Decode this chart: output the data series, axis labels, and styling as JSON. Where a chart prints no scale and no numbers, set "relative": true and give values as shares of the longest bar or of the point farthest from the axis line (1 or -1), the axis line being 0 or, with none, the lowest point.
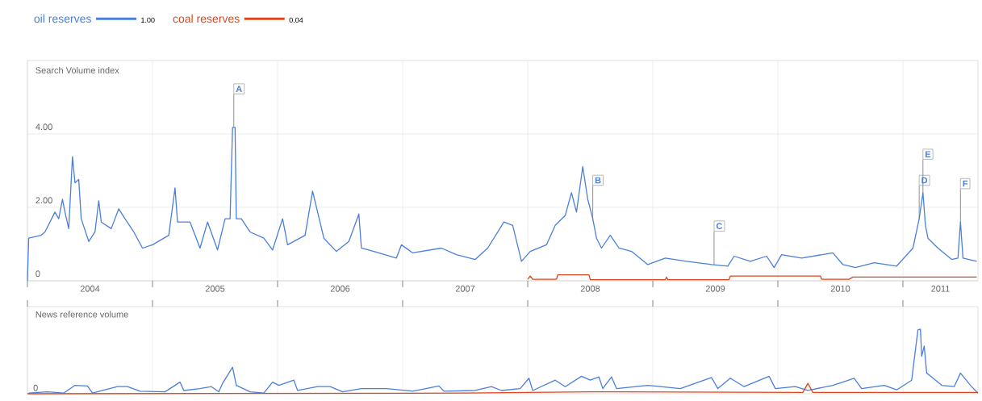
{
  "chart_data": [
    {
      "type": "line",
      "ylabel": "Search Volume index",
      "x": [
        2004.0,
        2004.01,
        2004.11,
        2004.14,
        2004.22,
        2004.25,
        2004.28,
        2004.3,
        2004.33,
        2004.36,
        2004.38,
        2004.41,
        2004.43,
        2004.49,
        2004.54,
        2004.57,
        2004.59,
        2004.67,
        2004.73,
        2004.78,
        2004.85,
        2004.92,
        2005.0,
        2005.13,
        2005.18,
        2005.2,
        2005.3,
        2005.38,
        2005.44,
        2005.52,
        2005.58,
        2005.62,
        2005.64,
        2005.66,
        2005.67,
        2005.71,
        2005.78,
        2005.89,
        2005.96,
        2006.04,
        2006.08,
        2006.22,
        2006.28,
        2006.37,
        2006.47,
        2006.57,
        2006.65,
        2006.67,
        2006.77,
        2006.95,
        2006.99,
        2007.08,
        2007.31,
        2007.43,
        2007.58,
        2007.68,
        2007.81,
        2007.88,
        2007.95,
        2008.02,
        2008.15,
        2008.22,
        2008.3,
        2008.35,
        2008.39,
        2008.44,
        2008.48,
        2008.52,
        2008.55,
        2008.59,
        2008.66,
        2008.73,
        2008.83,
        2008.96,
        2009.1,
        2009.27,
        2009.47,
        2009.6,
        2009.65,
        2009.78,
        2009.91,
        2009.97,
        2010.03,
        2010.19,
        2010.44,
        2010.52,
        2010.62,
        2010.77,
        2010.95,
        2011.08,
        2011.13,
        2011.16,
        2011.18,
        2011.2,
        2011.28,
        2011.39,
        2011.44,
        2011.46,
        2011.48,
        2011.59
      ],
      "series": [
        {
          "name": "oil reserves",
          "color": "#4a7fdc",
          "values": [
            0,
            1.16,
            1.24,
            1.33,
            1.87,
            1.69,
            2.22,
            1.87,
            1.42,
            3.38,
            2.67,
            2.76,
            1.69,
            1.07,
            1.33,
            2.18,
            1.6,
            1.42,
            1.96,
            1.69,
            1.33,
            0.89,
            0.98,
            1.24,
            2.53,
            1.6,
            1.6,
            0.89,
            1.6,
            0.84,
            1.69,
            1.69,
            4.18,
            4.18,
            1.69,
            1.69,
            1.33,
            1.16,
            0.84,
            1.69,
            0.98,
            1.24,
            2.44,
            1.16,
            0.8,
            1.07,
            1.82,
            0.89,
            0.8,
            0.62,
            0.98,
            0.76,
            0.89,
            0.71,
            0.58,
            0.89,
            1.6,
            1.51,
            0.53,
            0.8,
            0.98,
            1.51,
            1.78,
            2.4,
            1.87,
            3.11,
            2.22,
            1.69,
            1.16,
            0.89,
            1.24,
            0.89,
            0.8,
            0.44,
            0.62,
            0.53,
            0.44,
            0.4,
            0.67,
            0.53,
            0.67,
            0.36,
            0.71,
            0.62,
            0.76,
            0.44,
            0.36,
            0.49,
            0.4,
            0.89,
            1.69,
            2.4,
            1.51,
            1.16,
            0.89,
            0.58,
            0.62,
            1.6,
            0.62,
            0.53
          ]
        },
        {
          "name": "coal reserves",
          "color": "#d9481e",
          "x": [
            2008.0,
            2008.02,
            2008.04,
            2008.23,
            2008.24,
            2008.49,
            2008.5,
            2009.1,
            2009.11,
            2009.12,
            2009.61,
            2009.62,
            2010.34,
            2010.35,
            2010.57,
            2010.6,
            2011.59
          ],
          "values": [
            0.04,
            0.13,
            0.04,
            0.04,
            0.16,
            0.16,
            0.03,
            0.03,
            0.1,
            0.03,
            0.03,
            0.13,
            0.13,
            0.04,
            0.04,
            0.1,
            0.1
          ]
        }
      ],
      "xlim": [
        2004,
        2011.6
      ],
      "xticks": [
        {
          "value": 2004,
          "label": null
        },
        {
          "value": 2004.5,
          "label": "2004"
        },
        {
          "value": 2005,
          "label": null
        },
        {
          "value": 2005.5,
          "label": "2005"
        },
        {
          "value": 2006,
          "label": null
        },
        {
          "value": 2006.5,
          "label": "2006"
        },
        {
          "value": 2007,
          "label": null
        },
        {
          "value": 2007.5,
          "label": "2007"
        },
        {
          "value": 2008,
          "label": null
        },
        {
          "value": 2008.5,
          "label": "2008"
        },
        {
          "value": 2009,
          "label": null
        },
        {
          "value": 2009.5,
          "label": "2009"
        },
        {
          "value": 2010,
          "label": null
        },
        {
          "value": 2010.5,
          "label": "2010"
        },
        {
          "value": 2011,
          "label": null
        },
        {
          "value": 2011.3,
          "label": "2011"
        }
      ],
      "ylim": [
        0,
        6
      ],
      "yticks": [
        0,
        {
          "value": 2,
          "label": "2.00"
        },
        {
          "value": 4,
          "label": "4.00"
        }
      ],
      "grid": true,
      "legend": "top left",
      "annotations": [
        {
          "text": "A",
          "x": 2005.65,
          "y": 4.18
        },
        {
          "text": "B",
          "x": 2008.52,
          "y": 1.69
        },
        {
          "text": "C",
          "x": 2009.49,
          "y": 0.44
        },
        {
          "text": "D",
          "x": 2011.13,
          "y": 1.69
        },
        {
          "text": "E",
          "x": 2011.16,
          "y": 2.4
        },
        {
          "text": "F",
          "x": 2011.46,
          "y": 1.6
        },
        "1.00",
        "0.04"
      ]
    },
    {
      "type": "line",
      "ylabel": "News reference volume",
      "relative": true,
      "x": [
        2004.01,
        2004.16,
        2004.29,
        2004.38,
        2004.48,
        2004.52,
        2004.72,
        2004.8,
        2004.9,
        2005.1,
        2005.22,
        2005.25,
        2005.38,
        2005.47,
        2005.53,
        2005.56,
        2005.64,
        2005.67,
        2005.78,
        2005.89,
        2005.96,
        2006.01,
        2006.13,
        2006.16,
        2006.32,
        2006.42,
        2006.52,
        2006.67,
        2006.87,
        2007.08,
        2007.29,
        2007.33,
        2007.58,
        2007.71,
        2007.79,
        2007.94,
        2008.01,
        2008.04,
        2008.22,
        2008.3,
        2008.43,
        2008.5,
        2008.57,
        2008.6,
        2008.67,
        2008.71,
        2008.96,
        2009.06,
        2009.22,
        2009.47,
        2009.52,
        2009.62,
        2009.73,
        2009.93,
        2009.98,
        2010.14,
        2010.24,
        2010.44,
        2010.61,
        2010.67,
        2010.85,
        2010.95,
        2011.07,
        2011.12,
        2011.14,
        2011.15,
        2011.17,
        2011.19,
        2011.23,
        2011.31,
        2011.41,
        2011.46,
        2011.54,
        2011.6
      ],
      "series": [
        {
          "color": "#4a7fdc",
          "values": [
            0.01,
            0.03,
            0.01,
            0.13,
            0.12,
            0.01,
            0.11,
            0.11,
            0.04,
            0.03,
            0.18,
            0.05,
            0.08,
            0.11,
            0.03,
            0.16,
            0.41,
            0.13,
            0.03,
            0.01,
            0.18,
            0.13,
            0.21,
            0.05,
            0.11,
            0.11,
            0.03,
            0.08,
            0.08,
            0.04,
            0.12,
            0.04,
            0.05,
            0.11,
            0.05,
            0.08,
            0.24,
            0.05,
            0.21,
            0.11,
            0.27,
            0.21,
            0.26,
            0.08,
            0.26,
            0.08,
            0.13,
            0.11,
            0.08,
            0.25,
            0.08,
            0.24,
            0.11,
            0.27,
            0.08,
            0.11,
            0.05,
            0.13,
            0.24,
            0.08,
            0.13,
            0.06,
            0.21,
            0.99,
            1,
            0.58,
            0.74,
            0.32,
            0.26,
            0.13,
            0.11,
            0.32,
            0.13,
            0.01
          ]
        },
        {
          "color": "#d9481e",
          "x": [
            2004.0,
            2007.5,
            2008.5,
            2010.2,
            2010.24,
            2010.28,
            2011.6
          ],
          "values": [
            0,
            0.01,
            0.03,
            0.02,
            0.16,
            0.02,
            0.02
          ]
        }
      ],
      "xlim": [
        2004,
        2011.6
      ],
      "xticks": [
        {
          "value": 2004,
          "label": null
        },
        {
          "value": 2005,
          "label": null
        },
        {
          "value": 2006,
          "label": null
        },
        {
          "value": 2007,
          "label": null
        },
        {
          "value": 2008,
          "label": null
        },
        {
          "value": 2009,
          "label": null
        },
        {
          "value": 2010,
          "label": null
        },
        {
          "value": 2011,
          "label": null
        }
      ],
      "tick_labels": false,
      "grid": "x",
      "annotations": [
        "0"
      ]
    }
  ]
}
